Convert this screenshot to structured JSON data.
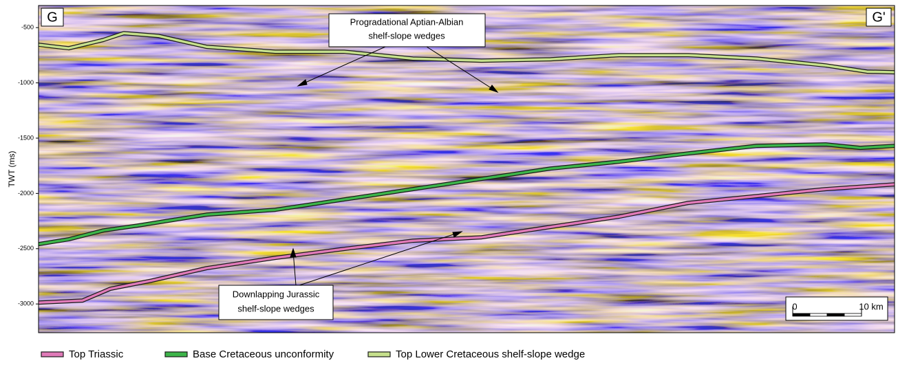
{
  "chart_data": {
    "type": "seismic-section",
    "ylabel": "TWT (ms)",
    "ylim": [
      -3260,
      -300
    ],
    "yticks": [
      -500,
      -1000,
      -1500,
      -2000,
      -2500,
      -3000
    ],
    "xlim": [
      0,
      124.4
    ],
    "section_start": "G",
    "section_end": "G'",
    "annotations": [
      {
        "lines": [
          "Progradational Aptian-Albian",
          "shelf-slope wedges"
        ]
      },
      {
        "lines": [
          "Downlapping Jurassic",
          "shelf-slope wedges"
        ]
      }
    ],
    "scale_bar": {
      "start": 0,
      "end": {
        "value": 10,
        "label": "10 km"
      }
    },
    "series": [
      {
        "name": "Top Triassic",
        "color": "#e07ab8",
        "x": [
          0,
          6.4,
          10.4,
          16.4,
          24.4,
          34.4,
          44.4,
          54.4,
          64.4,
          74.4,
          84.4,
          94.4,
          104.4,
          114.4,
          124.4
        ],
        "values": [
          -2988,
          -2969,
          -2863,
          -2789,
          -2677,
          -2583,
          -2502,
          -2428,
          -2397,
          -2303,
          -2210,
          -2086,
          -2024,
          -1961,
          -1918
        ]
      },
      {
        "name": "Base Cretaceous unconformity",
        "color": "#3db54a",
        "x": [
          0,
          4.4,
          9.4,
          14.4,
          24.4,
          34.4,
          44.4,
          54.4,
          64.4,
          74.4,
          84.4,
          94.4,
          104.4,
          114.4,
          119.4,
          124.4
        ],
        "values": [
          -2459,
          -2415,
          -2335,
          -2291,
          -2192,
          -2148,
          -2055,
          -1961,
          -1868,
          -1775,
          -1713,
          -1638,
          -1570,
          -1557,
          -1588,
          -1570
        ]
      },
      {
        "name": "Top Lower Cretaceous shelf-slope wedge",
        "color": "#c6e08c",
        "x": [
          0,
          4.4,
          9.4,
          12.4,
          17.4,
          24.4,
          34.4,
          44.4,
          54.4,
          64.4,
          74.4,
          84.4,
          94.4,
          104.4,
          114.4,
          120.4,
          124.4
        ],
        "values": [
          -655,
          -687,
          -612,
          -550,
          -575,
          -674,
          -718,
          -718,
          -780,
          -799,
          -786,
          -749,
          -749,
          -780,
          -842,
          -898,
          -904
        ]
      }
    ]
  }
}
